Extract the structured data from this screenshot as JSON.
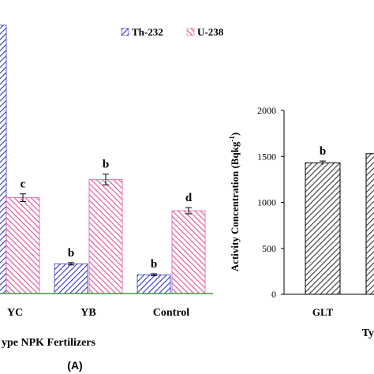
{
  "chart_data": [
    {
      "type": "bar",
      "panel_label": "(A)",
      "xlabel": "ype NPK Fertilizers",
      "categories": [
        "YC",
        "YB",
        "Control"
      ],
      "series": [
        {
          "name": "Th-232",
          "values": [
            null,
            155,
            98
          ],
          "letters": [
            "",
            "b",
            "b"
          ],
          "errors": [
            null,
            6,
            5
          ],
          "pattern": "blue-diagonal"
        },
        {
          "name": "U-238",
          "values": [
            500,
            595,
            432
          ],
          "letters": [
            "c",
            "b",
            "d"
          ],
          "errors": [
            20,
            28,
            16
          ],
          "pattern": "pink-diagonal"
        }
      ],
      "y_max": 1400,
      "first_bar_value": 1400,
      "legend": "top-right"
    },
    {
      "type": "bar",
      "ylabel": "Activity Concentration  (Bqkg",
      "ylabel_sup": "-1",
      "ylabel_close": ")",
      "ylim": [
        0,
        2000
      ],
      "yticks": [
        "0",
        "500",
        "1000",
        "1500",
        "2000"
      ],
      "xlabel": "Ty",
      "categories": [
        "GLT"
      ],
      "values": [
        1430
      ],
      "errors": [
        20
      ],
      "letters": [
        "b"
      ],
      "partial_bar_value": 1530
    }
  ],
  "colors": {
    "th_fill": "#3333cc",
    "u_fill": "#e05aa0",
    "bar_b_fill": "#444444",
    "axis": "#000000",
    "green_axis": "#3a9a3a"
  }
}
